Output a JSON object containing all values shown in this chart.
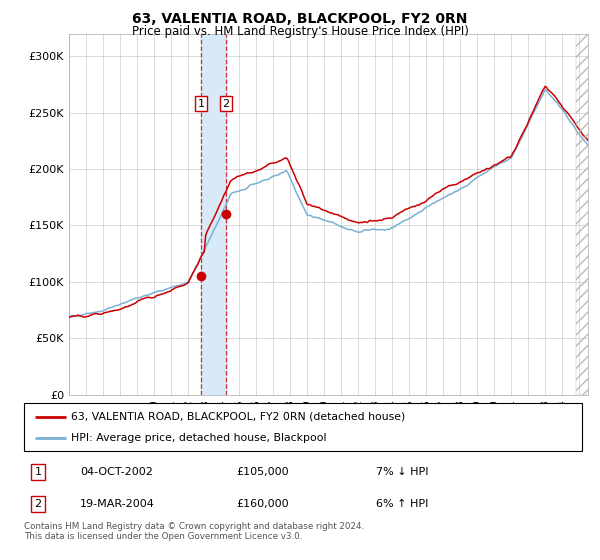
{
  "title": "63, VALENTIA ROAD, BLACKPOOL, FY2 0RN",
  "subtitle": "Price paid vs. HM Land Registry's House Price Index (HPI)",
  "legend_line1": "63, VALENTIA ROAD, BLACKPOOL, FY2 0RN (detached house)",
  "legend_line2": "HPI: Average price, detached house, Blackpool",
  "transaction1_date": "04-OCT-2002",
  "transaction1_price": "£105,000",
  "transaction1_hpi": "7% ↓ HPI",
  "transaction1_year": 2002.75,
  "transaction1_value": 105000,
  "transaction2_date": "19-MAR-2004",
  "transaction2_price": "£160,000",
  "transaction2_hpi": "6% ↑ HPI",
  "transaction2_year": 2004.22,
  "transaction2_value": 160000,
  "ylim": [
    0,
    320000
  ],
  "yticks": [
    0,
    50000,
    100000,
    150000,
    200000,
    250000,
    300000
  ],
  "ytick_labels": [
    "£0",
    "£50K",
    "£100K",
    "£150K",
    "£200K",
    "£250K",
    "£300K"
  ],
  "hpi_color": "#7ab0d4",
  "price_color": "#cc0000",
  "shading_color": "#d8eaf7",
  "footer": "Contains HM Land Registry data © Crown copyright and database right 2024.\nThis data is licensed under the Open Government Licence v3.0.",
  "background_color": "#ffffff",
  "grid_color": "#cccccc",
  "xstart": 1995,
  "xend": 2025.5
}
